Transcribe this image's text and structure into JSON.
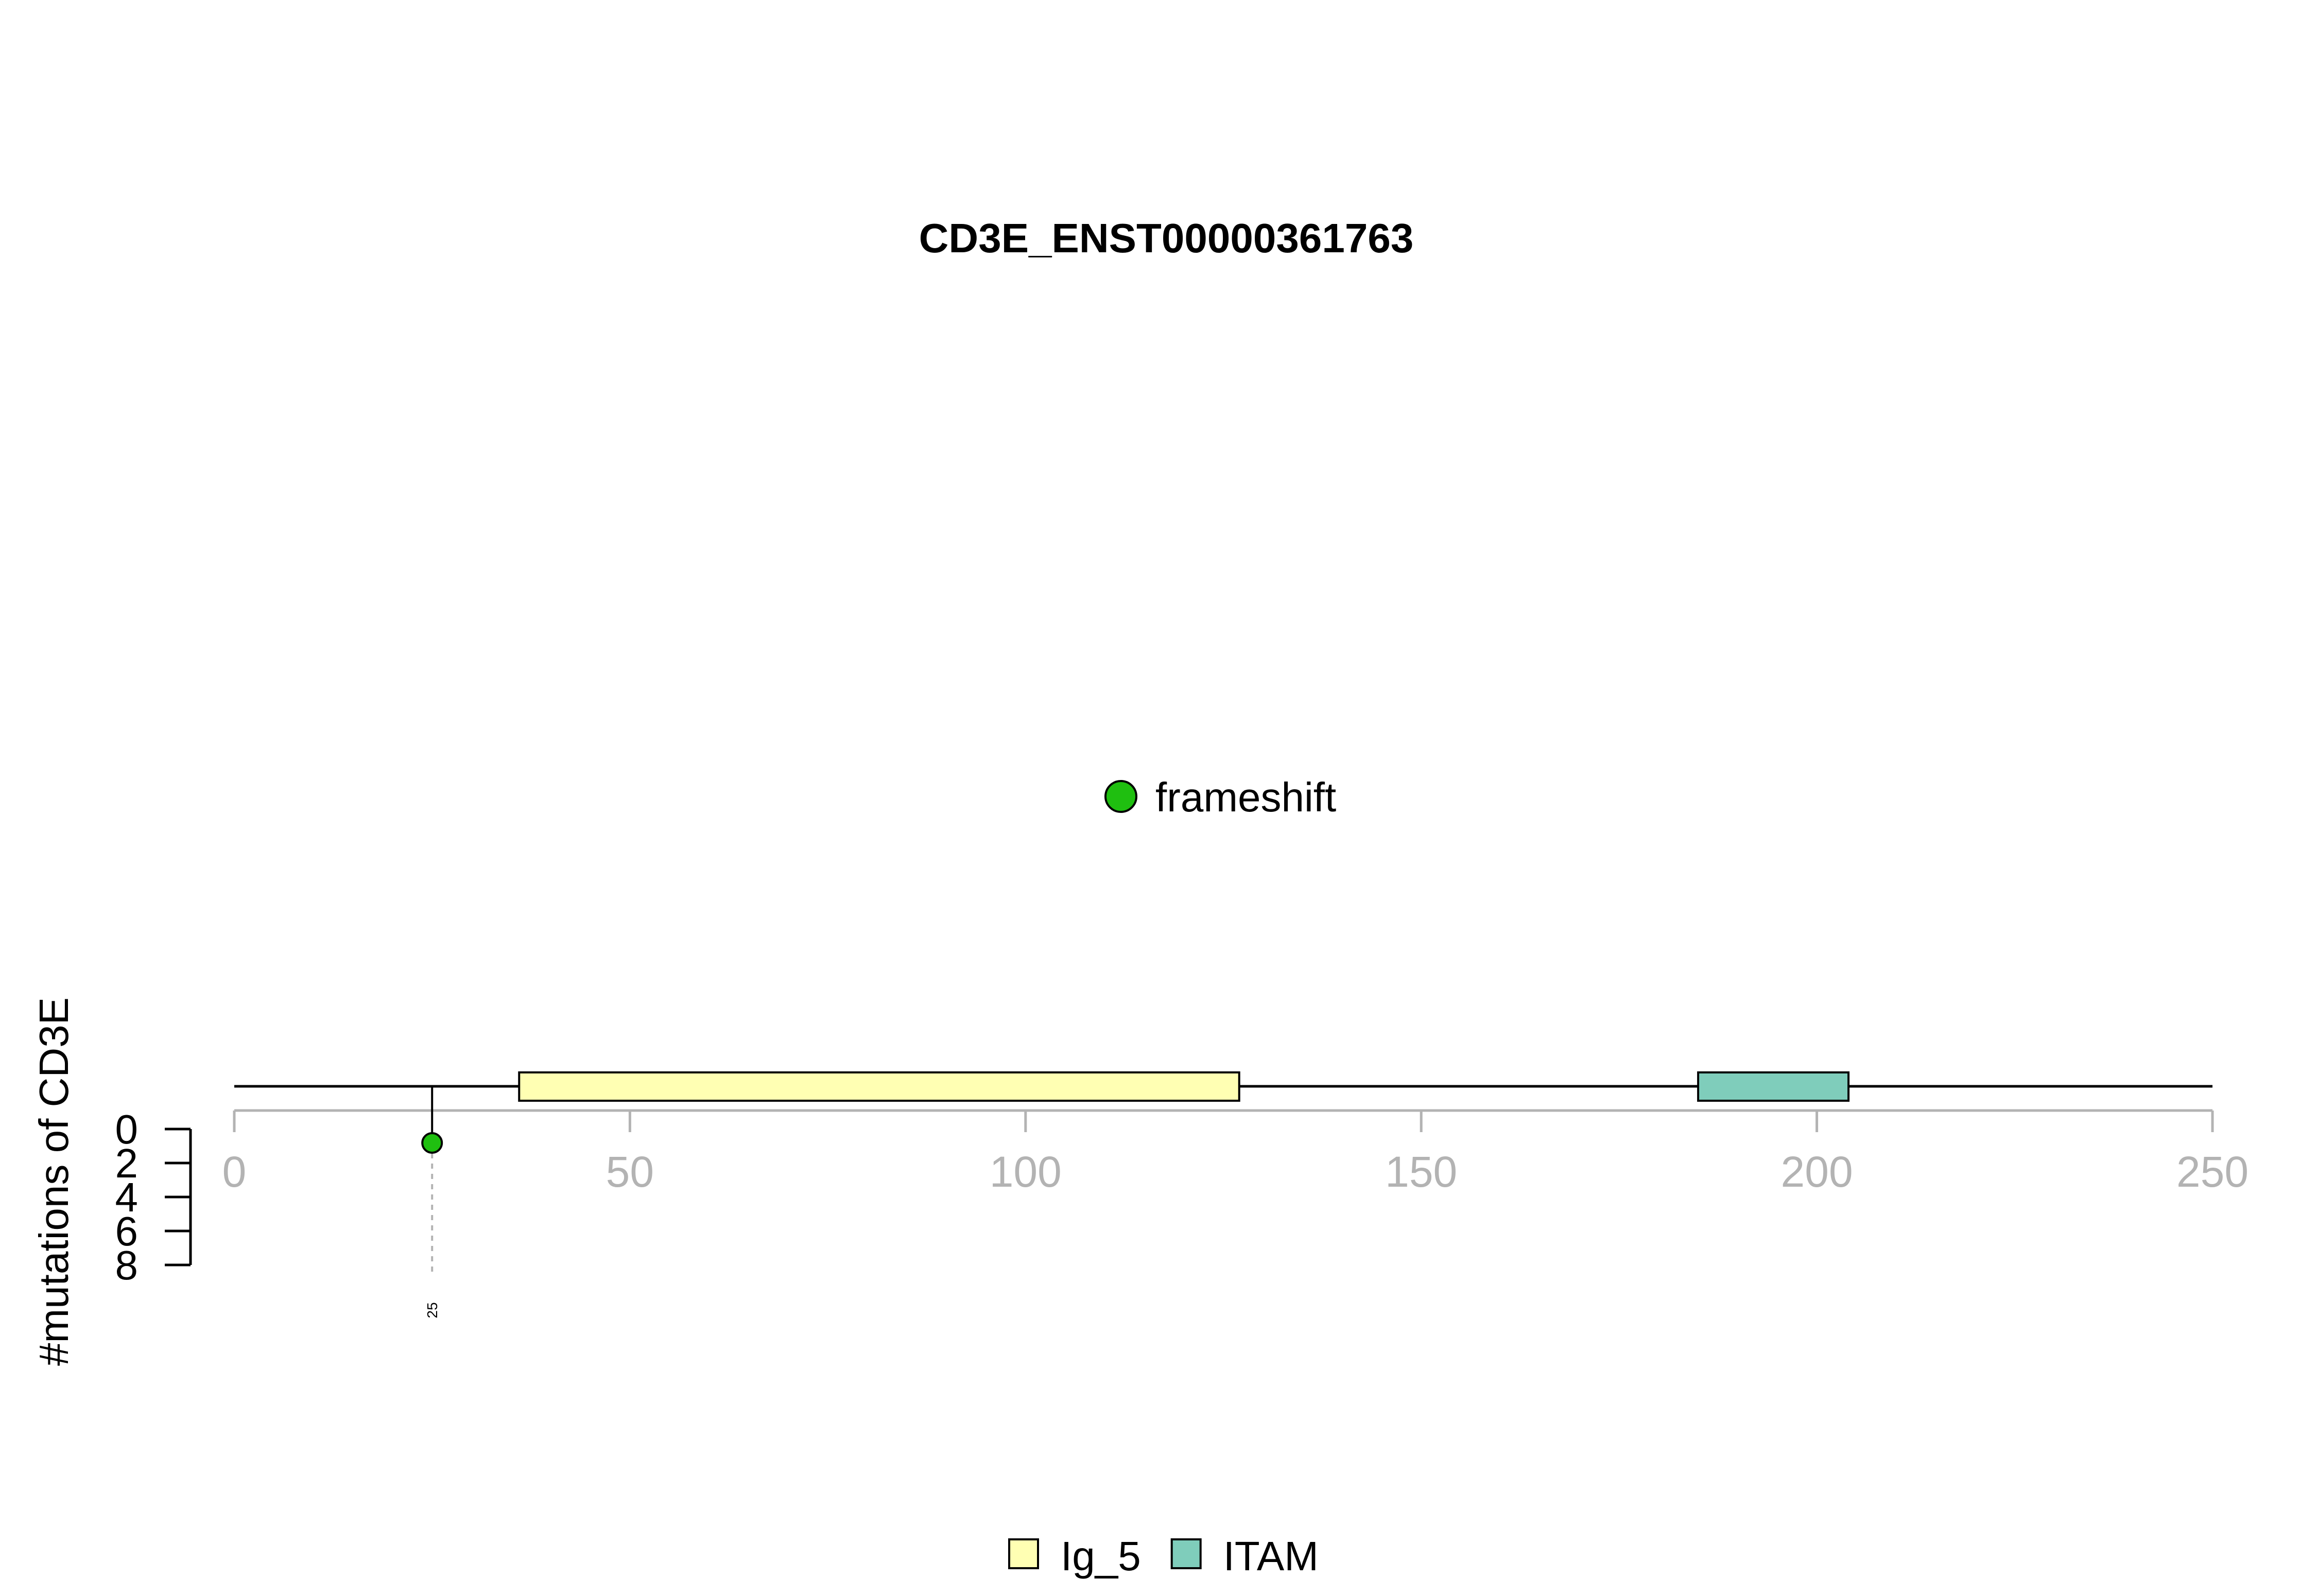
{
  "chart_data": {
    "type": "lollipop",
    "title": "CD3E_ENST00000361763",
    "ylabel": "#mutations of CD3E",
    "xlim": [
      0,
      250
    ],
    "x_ticks": [
      0,
      50,
      100,
      150,
      200,
      250
    ],
    "y_ticks": [
      0,
      2,
      4,
      6,
      8
    ],
    "ylim": [
      0,
      8
    ],
    "protein_length": 250,
    "domains": [
      {
        "name": "Ig_5",
        "start": 36,
        "end": 127,
        "color": "#FFFFB3"
      },
      {
        "name": "ITAM",
        "start": 185,
        "end": 204,
        "color": "#7FCDBB"
      }
    ],
    "mutations": [
      {
        "position": 25,
        "count": 1,
        "type": "frameshift",
        "color": "#1FBF10",
        "label": "25"
      }
    ],
    "mutation_legend": [
      {
        "label": "frameshift",
        "color": "#1FBF10"
      }
    ],
    "domain_legend": [
      {
        "label": "Ig_5",
        "color": "#FFFFB3"
      },
      {
        "label": "ITAM",
        "color": "#7FCDBB"
      }
    ]
  }
}
